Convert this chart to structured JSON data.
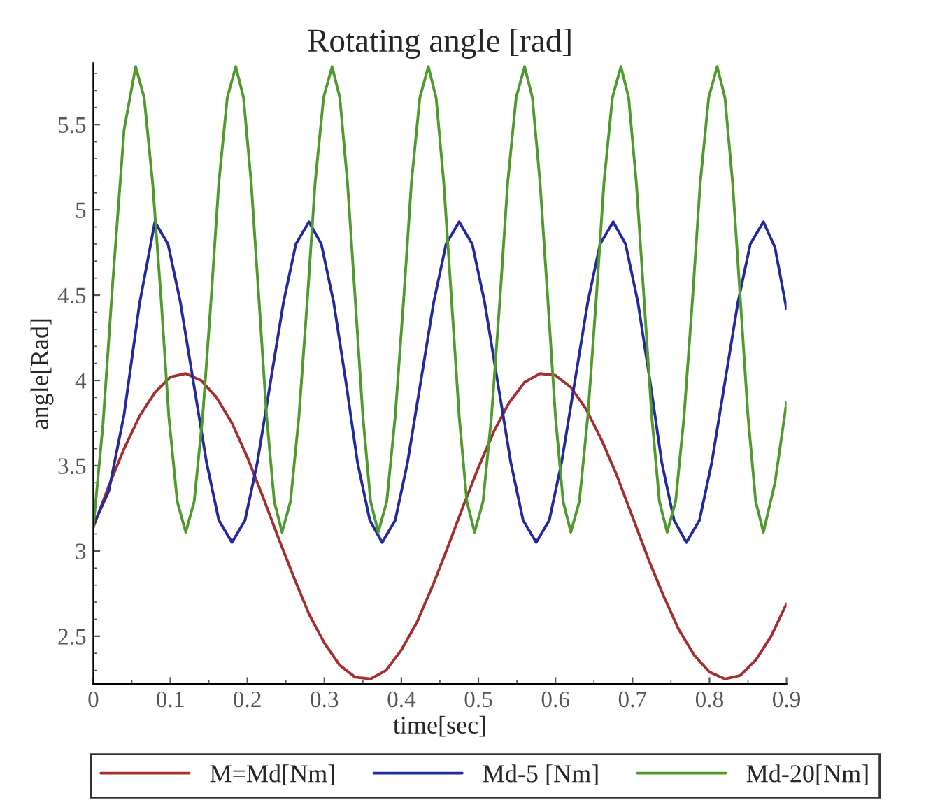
{
  "chart_data": {
    "type": "line",
    "title": "Rotating angle [rad]",
    "xlabel": "time[sec]",
    "ylabel": "angle[Rad]",
    "xlim": [
      0,
      0.9
    ],
    "xticks": [
      0,
      0.1,
      0.2,
      0.3,
      0.4,
      0.5,
      0.6,
      0.7,
      0.8,
      0.9
    ],
    "ylim": [
      2.22,
      5.86
    ],
    "yticks": [
      2.5,
      3,
      3.5,
      4,
      4.5,
      5,
      5.5
    ],
    "grid": false,
    "legend": "bottom",
    "marker": "none",
    "line_style": "solid",
    "series": [
      {
        "name": "M=Md[Nm]",
        "color": "#a3302e",
        "x": [
          0,
          0.02,
          0.04,
          0.06,
          0.08,
          0.1,
          0.12,
          0.14,
          0.16,
          0.18,
          0.2,
          0.22,
          0.24,
          0.26,
          0.28,
          0.3,
          0.32,
          0.34,
          0.36,
          0.38,
          0.4,
          0.42,
          0.44,
          0.46,
          0.48,
          0.5,
          0.52,
          0.54,
          0.56,
          0.58,
          0.6,
          0.62,
          0.64,
          0.66,
          0.68,
          0.7,
          0.72,
          0.74,
          0.76,
          0.78,
          0.8,
          0.82,
          0.84,
          0.86,
          0.88,
          0.9
        ],
        "values": [
          3.14,
          3.38,
          3.6,
          3.79,
          3.93,
          4.02,
          4.04,
          4.0,
          3.9,
          3.75,
          3.55,
          3.32,
          3.08,
          2.85,
          2.63,
          2.46,
          2.33,
          2.26,
          2.25,
          2.3,
          2.42,
          2.58,
          2.79,
          3.02,
          3.26,
          3.49,
          3.7,
          3.87,
          3.99,
          4.04,
          4.03,
          3.96,
          3.83,
          3.65,
          3.44,
          3.2,
          2.96,
          2.74,
          2.54,
          2.39,
          2.29,
          2.25,
          2.27,
          2.36,
          2.5,
          2.69
        ]
      },
      {
        "name": "Md-5 [Nm]",
        "color": "#222a9c",
        "x": [
          0,
          0.02,
          0.04,
          0.06,
          0.08,
          0.097,
          0.113,
          0.13,
          0.147,
          0.163,
          0.18,
          0.197,
          0.213,
          0.23,
          0.247,
          0.263,
          0.28,
          0.296,
          0.312,
          0.328,
          0.343,
          0.359,
          0.375,
          0.392,
          0.408,
          0.425,
          0.442,
          0.458,
          0.475,
          0.492,
          0.508,
          0.525,
          0.542,
          0.558,
          0.575,
          0.592,
          0.608,
          0.625,
          0.642,
          0.658,
          0.675,
          0.691,
          0.707,
          0.723,
          0.738,
          0.754,
          0.77,
          0.787,
          0.803,
          0.82,
          0.837,
          0.853,
          0.87,
          0.885,
          0.9
        ],
        "values": [
          3.15,
          3.35,
          3.8,
          4.45,
          4.93,
          4.8,
          4.46,
          3.99,
          3.52,
          3.18,
          3.05,
          3.18,
          3.52,
          3.99,
          4.46,
          4.8,
          4.93,
          4.8,
          4.46,
          3.99,
          3.52,
          3.18,
          3.05,
          3.18,
          3.52,
          3.99,
          4.46,
          4.8,
          4.93,
          4.8,
          4.46,
          3.99,
          3.52,
          3.18,
          3.05,
          3.18,
          3.52,
          3.99,
          4.46,
          4.8,
          4.93,
          4.8,
          4.46,
          3.99,
          3.52,
          3.18,
          3.05,
          3.18,
          3.52,
          3.99,
          4.46,
          4.8,
          4.93,
          4.78,
          4.42
        ]
      },
      {
        "name": "Md-20[Nm]",
        "color": "#4f9a2c",
        "x": [
          0,
          0.0125,
          0.025,
          0.04,
          0.055,
          0.066,
          0.077,
          0.088,
          0.098,
          0.109,
          0.12,
          0.131,
          0.142,
          0.153,
          0.163,
          0.174,
          0.185,
          0.195,
          0.205,
          0.215,
          0.225,
          0.235,
          0.245,
          0.256,
          0.267,
          0.278,
          0.288,
          0.299,
          0.31,
          0.32,
          0.33,
          0.34,
          0.35,
          0.36,
          0.37,
          0.381,
          0.392,
          0.403,
          0.413,
          0.424,
          0.435,
          0.445,
          0.455,
          0.465,
          0.475,
          0.485,
          0.495,
          0.506,
          0.517,
          0.528,
          0.538,
          0.549,
          0.56,
          0.57,
          0.58,
          0.59,
          0.6,
          0.61,
          0.62,
          0.631,
          0.642,
          0.653,
          0.663,
          0.674,
          0.685,
          0.695,
          0.705,
          0.715,
          0.725,
          0.735,
          0.745,
          0.756,
          0.767,
          0.778,
          0.788,
          0.799,
          0.81,
          0.82,
          0.83,
          0.84,
          0.85,
          0.86,
          0.87,
          0.885,
          0.9
        ],
        "values": [
          3.14,
          3.74,
          4.56,
          5.47,
          5.84,
          5.66,
          5.16,
          4.48,
          3.79,
          3.29,
          3.11,
          3.29,
          3.79,
          4.48,
          5.16,
          5.66,
          5.84,
          5.66,
          5.16,
          4.48,
          3.79,
          3.29,
          3.11,
          3.29,
          3.79,
          4.48,
          5.16,
          5.66,
          5.84,
          5.66,
          5.16,
          4.48,
          3.79,
          3.29,
          3.11,
          3.29,
          3.79,
          4.48,
          5.16,
          5.66,
          5.84,
          5.66,
          5.16,
          4.48,
          3.79,
          3.29,
          3.11,
          3.29,
          3.79,
          4.48,
          5.16,
          5.66,
          5.84,
          5.66,
          5.16,
          4.48,
          3.79,
          3.29,
          3.11,
          3.29,
          3.79,
          4.48,
          5.16,
          5.66,
          5.84,
          5.66,
          5.16,
          4.48,
          3.79,
          3.29,
          3.11,
          3.29,
          3.79,
          4.48,
          5.16,
          5.66,
          5.84,
          5.66,
          5.16,
          4.48,
          3.79,
          3.29,
          3.11,
          3.4,
          3.87
        ]
      }
    ]
  }
}
